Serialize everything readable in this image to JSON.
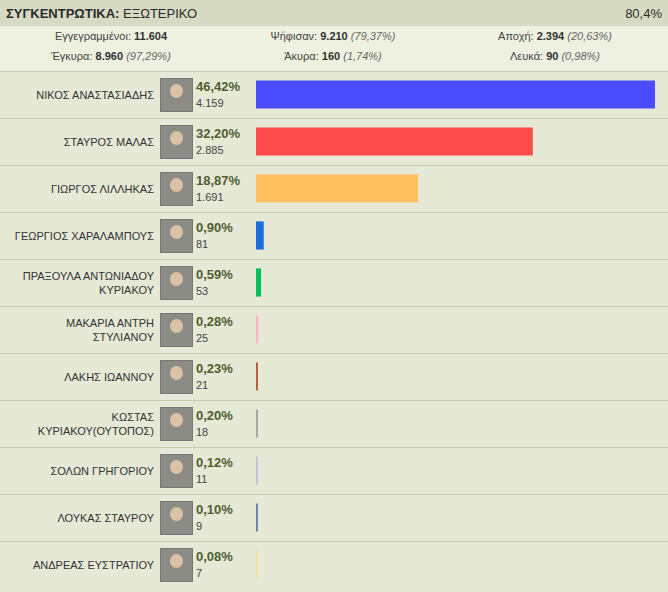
{
  "header": {
    "title_label": "ΣΥΓΚΕΝΤΡΩΤΙΚΑ:",
    "title": "ΕΞΩΤΕΡΙΚΟ",
    "counted": "80,4%"
  },
  "stats": [
    [
      {
        "label": "Εγγεγραμμένοι:",
        "value": "11.604"
      },
      {
        "label": "Ψήφισαν:",
        "value": "9.210",
        "share": "(79,37%)"
      },
      {
        "label": "Αποχή:",
        "value": "2.394",
        "share": "(20,63%)"
      }
    ],
    [
      {
        "label": "Έγκυρα:",
        "value": "8.960",
        "share": "(97,29%)"
      },
      {
        "label": "Άκυρα:",
        "value": "160",
        "share": "(1,74%)"
      },
      {
        "label": "Λευκά:",
        "value": "90",
        "share": "(0,98%)"
      }
    ]
  ],
  "chart_data": {
    "type": "bar",
    "orientation": "horizontal",
    "categories": [
      "ΝΙΚΟΣ ΑΝΑΣΤΑΣΙΑΔΗΣ",
      "ΣΤΑΥΡΟΣ ΜΑΛΑΣ",
      "ΓΙΩΡΓΟΣ ΛΙΛΛΗΚΑΣ",
      "ΓΕΩΡΓΙΟΣ ΧΑΡΑΛΑΜΠΟΥΣ",
      "ΠΡΑΞΟΥΛΑ ΑΝΤΩΝΙΑΔΟΥ ΚΥΡΙΑΚΟΥ",
      "ΜΑΚΑΡΙΑ ΑΝΤΡΗ ΣΤΥΛΙΑΝΟΥ",
      "ΛΑΚΗΣ ΙΩΑΝΝΟΥ",
      "ΚΩΣΤΑΣ ΚΥΡΙΑΚΟΥ(ΟΥΤΟΠΟΣ)",
      "ΣΟΛΩΝ ΓΡΗΓΟΡΙΟΥ",
      "ΛΟΥΚΑΣ ΣΤΑΥΡΟΥ",
      "ΑΝΔΡΕΑΣ ΕΥΣΤΡΑΤΙΟΥ"
    ],
    "values": [
      46.42,
      32.2,
      18.87,
      0.9,
      0.59,
      0.28,
      0.23,
      0.2,
      0.12,
      0.1,
      0.08
    ],
    "value_labels": [
      "46,42%",
      "32,20%",
      "18,87%",
      "0,90%",
      "0,59%",
      "0,28%",
      "0,23%",
      "0,20%",
      "0,12%",
      "0,10%",
      "0,08%"
    ],
    "counts": [
      "4.159",
      "2.885",
      "1.691",
      "81",
      "53",
      "25",
      "21",
      "18",
      "11",
      "9",
      "7"
    ],
    "colors": [
      "#4b4bff",
      "#ff4b4b",
      "#ffc060",
      "#1a6fdf",
      "#00c060",
      "#ffb6c8",
      "#b8643a",
      "#a8a8a8",
      "#c4c4d8",
      "#6a84b4",
      "#f0e2a6"
    ],
    "xlim": [
      0,
      47
    ],
    "data_labels": true,
    "tick_labels": false,
    "grid": false
  }
}
